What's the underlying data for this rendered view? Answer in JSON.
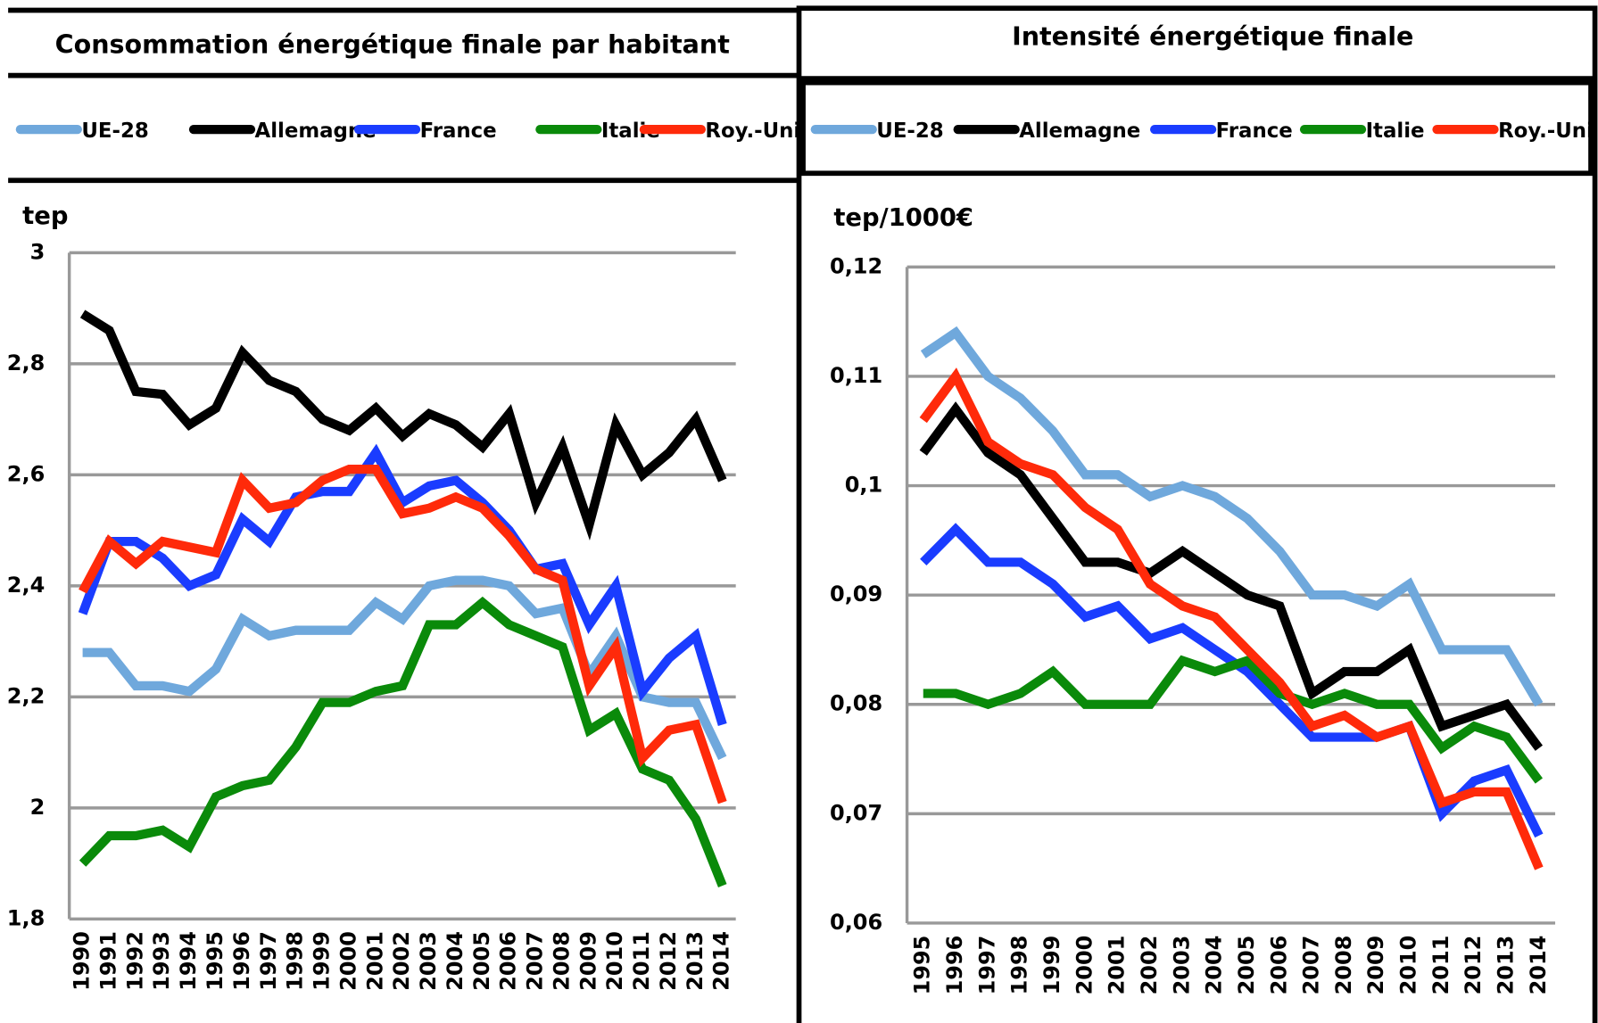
{
  "chart_data": [
    {
      "type": "line",
      "title": "Consommation énergétique finale par habitant",
      "y_label": "tep",
      "categories": [
        "1990",
        "1991",
        "1992",
        "1993",
        "1994",
        "1995",
        "1996",
        "1997",
        "1998",
        "1999",
        "2000",
        "2001",
        "2002",
        "2003",
        "2004",
        "2005",
        "2006",
        "2007",
        "2008",
        "2009",
        "2010",
        "2011",
        "2012",
        "2013",
        "2014"
      ],
      "ylim": [
        1.8,
        3
      ],
      "yticks": [
        {
          "value": 1.8,
          "label": "1,8"
        },
        2,
        {
          "value": 2.2,
          "label": "2,2"
        },
        {
          "value": 2.4,
          "label": "2,4"
        },
        {
          "value": 2.6,
          "label": "2,6"
        },
        {
          "value": 2.8,
          "label": "2,8"
        },
        3
      ],
      "grid": true,
      "series": [
        {
          "name": "UE-28",
          "color": "#6fa8dc",
          "values": [
            2.28,
            2.28,
            2.22,
            2.22,
            2.21,
            2.25,
            2.34,
            2.31,
            2.32,
            2.32,
            2.32,
            2.37,
            2.34,
            2.4,
            2.41,
            2.41,
            2.4,
            2.35,
            2.36,
            2.24,
            2.31,
            2.2,
            2.19,
            2.19,
            2.09
          ]
        },
        {
          "name": "Allemagne",
          "color": "#000000",
          "values": [
            2.89,
            2.86,
            2.75,
            2.745,
            2.69,
            2.72,
            2.82,
            2.77,
            2.75,
            2.7,
            2.68,
            2.72,
            2.67,
            2.71,
            2.69,
            2.65,
            2.71,
            2.55,
            2.65,
            2.51,
            2.69,
            2.6,
            2.64,
            2.7,
            2.59
          ]
        },
        {
          "name": "France",
          "color": "#1a3cff",
          "values": [
            2.35,
            2.48,
            2.48,
            2.45,
            2.4,
            2.42,
            2.52,
            2.48,
            2.56,
            2.57,
            2.57,
            2.64,
            2.55,
            2.58,
            2.59,
            2.55,
            2.5,
            2.43,
            2.44,
            2.33,
            2.4,
            2.21,
            2.27,
            2.31,
            2.15
          ]
        },
        {
          "name": "Italie",
          "color": "#0a8a0a",
          "values": [
            1.9,
            1.95,
            1.95,
            1.96,
            1.93,
            2.02,
            2.04,
            2.05,
            2.11,
            2.19,
            2.19,
            2.21,
            2.22,
            2.33,
            2.33,
            2.37,
            2.33,
            2.31,
            2.29,
            2.14,
            2.17,
            2.07,
            2.05,
            1.98,
            1.86
          ]
        },
        {
          "name": "Roy.-Uni",
          "color": "#ff2a0a",
          "values": [
            2.39,
            2.48,
            2.44,
            2.48,
            2.47,
            2.46,
            2.59,
            2.54,
            2.55,
            2.59,
            2.61,
            2.61,
            2.53,
            2.54,
            2.56,
            2.54,
            2.49,
            2.43,
            2.41,
            2.22,
            2.29,
            2.09,
            2.14,
            2.15,
            2.01
          ]
        }
      ]
    },
    {
      "type": "line",
      "title": "Intensité énergétique finale",
      "y_label": "tep/1000€",
      "categories": [
        "1995",
        "1996",
        "1997",
        "1998",
        "1999",
        "2000",
        "2001",
        "2002",
        "2003",
        "2004",
        "2005",
        "2006",
        "2007",
        "2008",
        "2009",
        "2010",
        "2011",
        "2012",
        "2013",
        "2014"
      ],
      "ylim": [
        0.06,
        0.12
      ],
      "yticks": [
        {
          "value": 0.06,
          "label": "0,06"
        },
        {
          "value": 0.07,
          "label": "0,07"
        },
        {
          "value": 0.08,
          "label": "0,08"
        },
        {
          "value": 0.09,
          "label": "0,09"
        },
        {
          "value": 0.1,
          "label": "0,1"
        },
        {
          "value": 0.11,
          "label": "0,11"
        },
        {
          "value": 0.12,
          "label": "0,12"
        }
      ],
      "grid": true,
      "series": [
        {
          "name": "UE-28",
          "color": "#6fa8dc",
          "values": [
            0.112,
            0.114,
            0.11,
            0.108,
            0.105,
            0.101,
            0.101,
            0.099,
            0.1,
            0.099,
            0.097,
            0.094,
            0.09,
            0.09,
            0.089,
            0.091,
            0.085,
            0.085,
            0.085,
            0.08
          ]
        },
        {
          "name": "Allemagne",
          "color": "#000000",
          "values": [
            0.103,
            0.107,
            0.103,
            0.101,
            0.097,
            0.093,
            0.093,
            0.092,
            0.094,
            0.092,
            0.09,
            0.089,
            0.081,
            0.083,
            0.083,
            0.085,
            0.078,
            0.079,
            0.08,
            0.076
          ]
        },
        {
          "name": "France",
          "color": "#1a3cff",
          "values": [
            0.093,
            0.096,
            0.093,
            0.093,
            0.091,
            0.088,
            0.089,
            0.086,
            0.087,
            0.085,
            0.083,
            0.08,
            0.077,
            0.077,
            0.077,
            0.078,
            0.07,
            0.073,
            0.074,
            0.068
          ]
        },
        {
          "name": "Italie",
          "color": "#0a8a0a",
          "values": [
            0.081,
            0.081,
            0.08,
            0.081,
            0.083,
            0.08,
            0.08,
            0.08,
            0.084,
            0.083,
            0.084,
            0.081,
            0.08,
            0.081,
            0.08,
            0.08,
            0.076,
            0.078,
            0.077,
            0.073
          ]
        },
        {
          "name": "Roy.-Uni",
          "color": "#ff2a0a",
          "values": [
            0.106,
            0.11,
            0.104,
            0.102,
            0.101,
            0.098,
            0.096,
            0.091,
            0.089,
            0.088,
            0.085,
            0.082,
            0.078,
            0.079,
            0.077,
            0.078,
            0.071,
            0.072,
            0.072,
            0.065
          ]
        }
      ]
    }
  ]
}
